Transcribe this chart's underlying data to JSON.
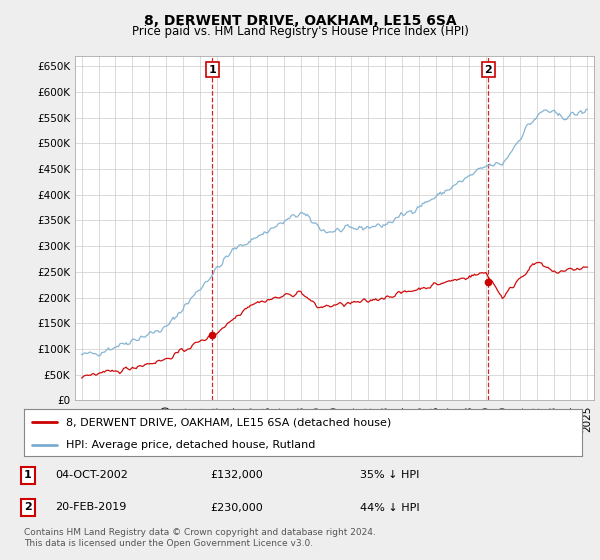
{
  "title": "8, DERWENT DRIVE, OAKHAM, LE15 6SA",
  "subtitle": "Price paid vs. HM Land Registry's House Price Index (HPI)",
  "ylim": [
    0,
    670000
  ],
  "yticks": [
    0,
    50000,
    100000,
    150000,
    200000,
    250000,
    300000,
    350000,
    400000,
    450000,
    500000,
    550000,
    600000,
    650000
  ],
  "xlim_min": 1994.6,
  "xlim_max": 2025.4,
  "bg_color": "#eeeeee",
  "plot_bg_color": "#ffffff",
  "hpi_color": "#7aadcf",
  "price_color": "#cc0000",
  "vline_color": "#cc0000",
  "transaction1": {
    "date_num": 2002.75,
    "price": 132000,
    "label": "1",
    "text": "04-OCT-2002",
    "amount": "£132,000",
    "pct": "35% ↓ HPI"
  },
  "transaction2": {
    "date_num": 2019.12,
    "price": 230000,
    "label": "2",
    "text": "20-FEB-2019",
    "amount": "£230,000",
    "pct": "44% ↓ HPI"
  },
  "legend_property": "8, DERWENT DRIVE, OAKHAM, LE15 6SA (detached house)",
  "legend_hpi": "HPI: Average price, detached house, Rutland",
  "footer1": "Contains HM Land Registry data © Crown copyright and database right 2024.",
  "footer2": "This data is licensed under the Open Government Licence v3.0."
}
